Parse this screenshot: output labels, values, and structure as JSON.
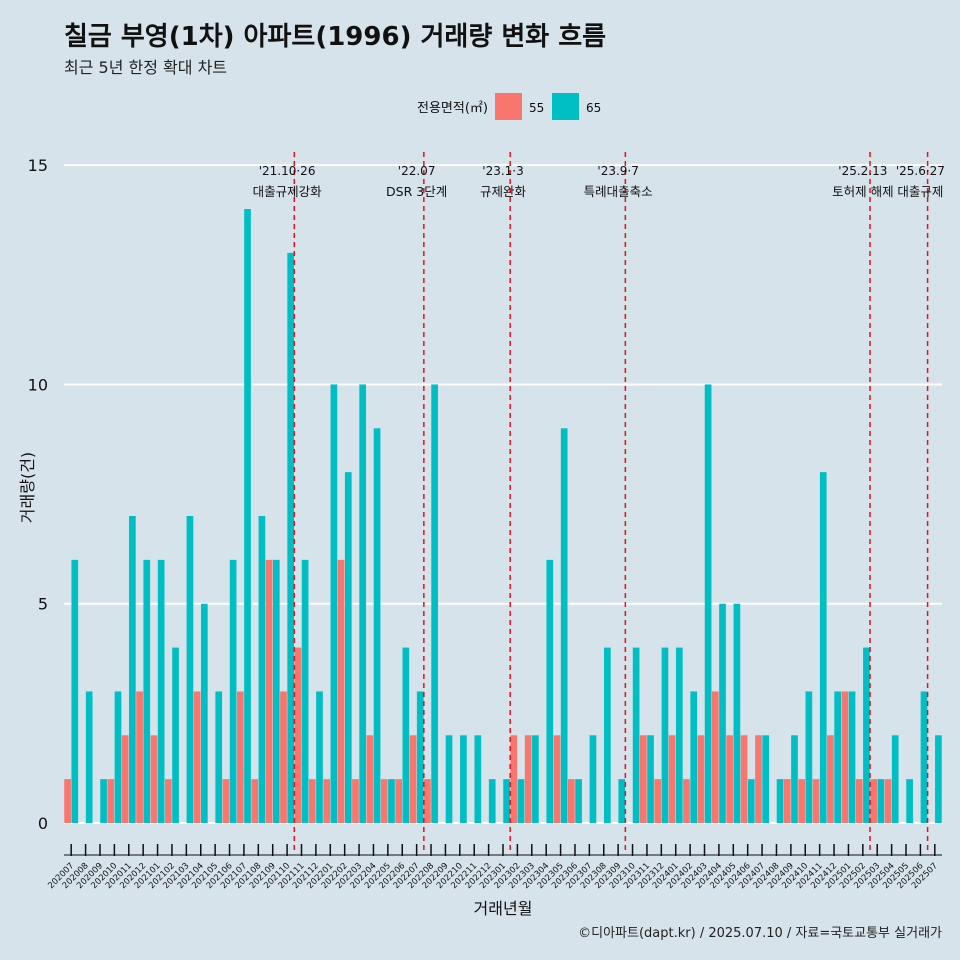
{
  "title": "칠금 부영(1차) 아파트(1996) 거래량 변화 흐름",
  "subtitle": "최근 5년 한정 확대 차트",
  "caption": "©디아파트(dapt.kr) / 2025.07.10 / 자료=국토교통부 실거래가",
  "colors": {
    "background": "#d6e3ea",
    "s55": "#f8766d",
    "s65": "#00bfc4",
    "event": "#e8101a",
    "grid": "#ffffff"
  },
  "chart_data": {
    "type": "bar",
    "xlabel": "거래년월",
    "ylabel": "거래량(건)",
    "ylim": [
      0,
      15
    ],
    "yticks": [
      0,
      5,
      10,
      15
    ],
    "legend": {
      "title": "전용면적(㎡)",
      "position": "top"
    },
    "categories": [
      "202007",
      "202008",
      "202009",
      "202010",
      "202011",
      "202012",
      "202101",
      "202102",
      "202103",
      "202104",
      "202105",
      "202106",
      "202107",
      "202108",
      "202109",
      "202110",
      "202111",
      "202112",
      "202201",
      "202202",
      "202203",
      "202204",
      "202205",
      "202206",
      "202207",
      "202208",
      "202209",
      "202210",
      "202211",
      "202212",
      "202301",
      "202302",
      "202303",
      "202304",
      "202305",
      "202306",
      "202307",
      "202308",
      "202309",
      "202310",
      "202311",
      "202312",
      "202401",
      "202402",
      "202403",
      "202404",
      "202405",
      "202406",
      "202407",
      "202408",
      "202409",
      "202410",
      "202411",
      "202412",
      "202501",
      "202502",
      "202503",
      "202504",
      "202505",
      "202506",
      "202507"
    ],
    "series": [
      {
        "name": "55",
        "values": [
          1,
          0,
          0,
          1,
          2,
          3,
          2,
          1,
          0,
          3,
          0,
          1,
          3,
          1,
          6,
          3,
          4,
          1,
          1,
          6,
          1,
          2,
          1,
          1,
          2,
          1,
          0,
          0,
          0,
          0,
          0,
          2,
          2,
          0,
          2,
          1,
          0,
          0,
          0,
          0,
          2,
          1,
          2,
          1,
          2,
          3,
          2,
          2,
          2,
          0,
          1,
          1,
          1,
          2,
          3,
          1,
          1,
          1,
          0,
          0,
          0
        ]
      },
      {
        "name": "65",
        "values": [
          6,
          3,
          1,
          3,
          7,
          6,
          6,
          4,
          7,
          5,
          3,
          6,
          14,
          7,
          6,
          13,
          6,
          3,
          10,
          8,
          10,
          9,
          1,
          4,
          3,
          10,
          2,
          2,
          2,
          1,
          1,
          1,
          2,
          6,
          9,
          1,
          2,
          4,
          1,
          4,
          2,
          4,
          4,
          3,
          10,
          5,
          5,
          1,
          2,
          1,
          2,
          3,
          8,
          3,
          3,
          4,
          1,
          2,
          1,
          3,
          2
        ]
      }
    ],
    "annotations": [
      {
        "date": "'21.10·26",
        "text": "대출규제강화",
        "after": "202110"
      },
      {
        "date": "'22.07",
        "text": "DSR 3단계",
        "after": "202207"
      },
      {
        "date": "'23.1·3",
        "text": "규제완화",
        "after": "202301"
      },
      {
        "date": "'23.9·7",
        "text": "특례대출축소",
        "after": "202309"
      },
      {
        "date": "'25.2.13",
        "text": "토허제 해제",
        "after": "202502"
      },
      {
        "date": "'25.6·27",
        "text": "대출규제",
        "after": "202506"
      }
    ]
  }
}
